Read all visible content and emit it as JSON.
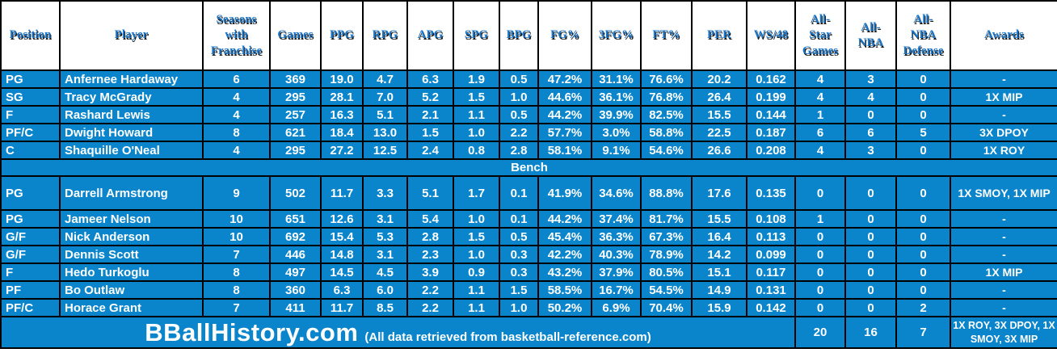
{
  "colors": {
    "cell_blue": "#0a85cc",
    "grid_black": "#000000",
    "header_text_blue": "#1b74c5",
    "cell_text_white": "#ffffff"
  },
  "chart_data": {
    "type": "table",
    "columns": [
      {
        "key": "position",
        "label": "Position"
      },
      {
        "key": "player",
        "label": "Player"
      },
      {
        "key": "seasons",
        "label": "Seasons\nwith\nFranchise"
      },
      {
        "key": "games",
        "label": "Games"
      },
      {
        "key": "ppg",
        "label": "PPG"
      },
      {
        "key": "rpg",
        "label": "RPG"
      },
      {
        "key": "apg",
        "label": "APG"
      },
      {
        "key": "spg",
        "label": "SPG"
      },
      {
        "key": "bpg",
        "label": "BPG"
      },
      {
        "key": "fg-pct",
        "label": "FG%"
      },
      {
        "key": "3fg-pct",
        "label": "3FG%"
      },
      {
        "key": "ft-pct",
        "label": "FT%"
      },
      {
        "key": "per",
        "label": "PER"
      },
      {
        "key": "ws48",
        "label": "WS/48"
      },
      {
        "key": "all-star-games",
        "label": "All-\nStar\nGames"
      },
      {
        "key": "all-nba",
        "label": "All-\nNBA"
      },
      {
        "key": "all-nba-defense",
        "label": "All-\nNBA\nDefense"
      },
      {
        "key": "awards",
        "label": "Awards"
      }
    ],
    "starters": [
      {
        "cells": [
          "PG",
          "Anfernee Hardaway",
          "6",
          "369",
          "19.0",
          "4.7",
          "6.3",
          "1.9",
          "0.5",
          "47.2%",
          "31.1%",
          "76.6%",
          "20.2",
          "0.162",
          "4",
          "3",
          "0",
          "-"
        ]
      },
      {
        "cells": [
          "SG",
          "Tracy McGrady",
          "4",
          "295",
          "28.1",
          "7.0",
          "5.2",
          "1.5",
          "1.0",
          "44.6%",
          "36.1%",
          "76.8%",
          "26.4",
          "0.199",
          "4",
          "4",
          "0",
          "1X MIP"
        ]
      },
      {
        "cells": [
          "F",
          "Rashard Lewis",
          "4",
          "257",
          "16.3",
          "5.1",
          "2.1",
          "1.1",
          "0.5",
          "44.2%",
          "39.9%",
          "82.5%",
          "15.5",
          "0.144",
          "1",
          "0",
          "0",
          "-"
        ]
      },
      {
        "cells": [
          "PF/C",
          "Dwight Howard",
          "8",
          "621",
          "18.4",
          "13.0",
          "1.5",
          "1.0",
          "2.2",
          "57.7%",
          "3.0%",
          "58.8%",
          "22.5",
          "0.187",
          "6",
          "6",
          "5",
          "3X DPOY"
        ]
      },
      {
        "cells": [
          "C",
          "Shaquille O'Neal",
          "4",
          "295",
          "27.2",
          "12.5",
          "2.4",
          "0.8",
          "2.8",
          "58.1%",
          "9.1%",
          "54.6%",
          "26.6",
          "0.208",
          "4",
          "3",
          "0",
          "1X ROY"
        ]
      }
    ],
    "bench_label": "Bench",
    "bench": [
      {
        "cells": [
          "PG",
          "Darrell Armstrong",
          "9",
          "502",
          "11.7",
          "3.3",
          "5.1",
          "1.7",
          "0.1",
          "41.9%",
          "34.6%",
          "88.8%",
          "17.6",
          "0.135",
          "0",
          "0",
          "0",
          "1X SMOY, 1X MIP"
        ]
      },
      {
        "cells": [
          "PG",
          "Jameer Nelson",
          "10",
          "651",
          "12.6",
          "3.1",
          "5.4",
          "1.0",
          "0.1",
          "44.2%",
          "37.4%",
          "81.7%",
          "15.5",
          "0.108",
          "1",
          "0",
          "0",
          "-"
        ]
      },
      {
        "cells": [
          "G/F",
          "Nick Anderson",
          "10",
          "692",
          "15.4",
          "5.3",
          "2.8",
          "1.5",
          "0.5",
          "45.4%",
          "36.3%",
          "67.3%",
          "16.4",
          "0.113",
          "0",
          "0",
          "0",
          "-"
        ]
      },
      {
        "cells": [
          "G/F",
          "Dennis Scott",
          "7",
          "446",
          "14.8",
          "3.1",
          "2.3",
          "1.0",
          "0.3",
          "42.2%",
          "40.3%",
          "78.9%",
          "14.2",
          "0.099",
          "0",
          "0",
          "0",
          "-"
        ]
      },
      {
        "cells": [
          "F",
          "Hedo Turkoglu",
          "8",
          "497",
          "14.5",
          "4.5",
          "3.9",
          "0.9",
          "0.3",
          "43.2%",
          "37.9%",
          "80.5%",
          "15.1",
          "0.117",
          "0",
          "0",
          "0",
          "1X MIP"
        ]
      },
      {
        "cells": [
          "PF",
          "Bo Outlaw",
          "8",
          "360",
          "6.3",
          "6.0",
          "2.2",
          "1.1",
          "1.5",
          "58.5%",
          "16.7%",
          "54.5%",
          "14.9",
          "0.131",
          "0",
          "0",
          "0",
          "-"
        ]
      },
      {
        "cells": [
          "PF/C",
          "Horace Grant",
          "7",
          "411",
          "11.7",
          "8.5",
          "2.2",
          "1.1",
          "1.0",
          "50.2%",
          "6.9%",
          "70.4%",
          "15.9",
          "0.142",
          "0",
          "0",
          "2",
          "-"
        ]
      }
    ],
    "footer": {
      "brand": "BBallHistory.com",
      "note": "(All data retrieved from basketball-reference.com)",
      "totals": {
        "all_star_games": "20",
        "all_nba": "16",
        "all_nba_defense": "7",
        "awards": "1X ROY, 3X DPOY, 1X SMOY, 3X MIP"
      }
    }
  }
}
